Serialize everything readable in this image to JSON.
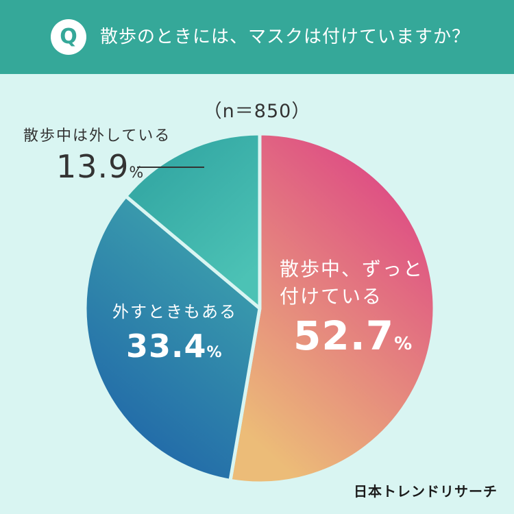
{
  "header": {
    "badge": "Q",
    "question": "散歩のときには、マスクは付けていますか？"
  },
  "sample_size": "（n＝850）",
  "chart_data": {
    "type": "pie",
    "title": "散歩のときには、マスクは付けていますか？",
    "n": 850,
    "slices": [
      {
        "label": "散歩中、ずっと付けている",
        "value": 52.7,
        "color_start": "#de4f84",
        "color_end": "#ecbc78"
      },
      {
        "label": "外すときもある",
        "value": 33.4,
        "color_start": "#1f64a8",
        "color_end": "#3ea4ad"
      },
      {
        "label": "散歩中は外している",
        "value": 13.9,
        "color_start": "#36aaa5",
        "color_end": "#4cc2b5"
      }
    ],
    "display": {
      "s1_line1": "散歩中、ずっと",
      "s1_line2": "付けている",
      "s1_value": "52.7",
      "s2_line1": "外すときもある",
      "s2_value": "33.4",
      "s3_line1": "散歩中は外している",
      "s3_value": "13.9",
      "pct_sign": "%"
    }
  },
  "logo": "日本トレンドリサーチ"
}
